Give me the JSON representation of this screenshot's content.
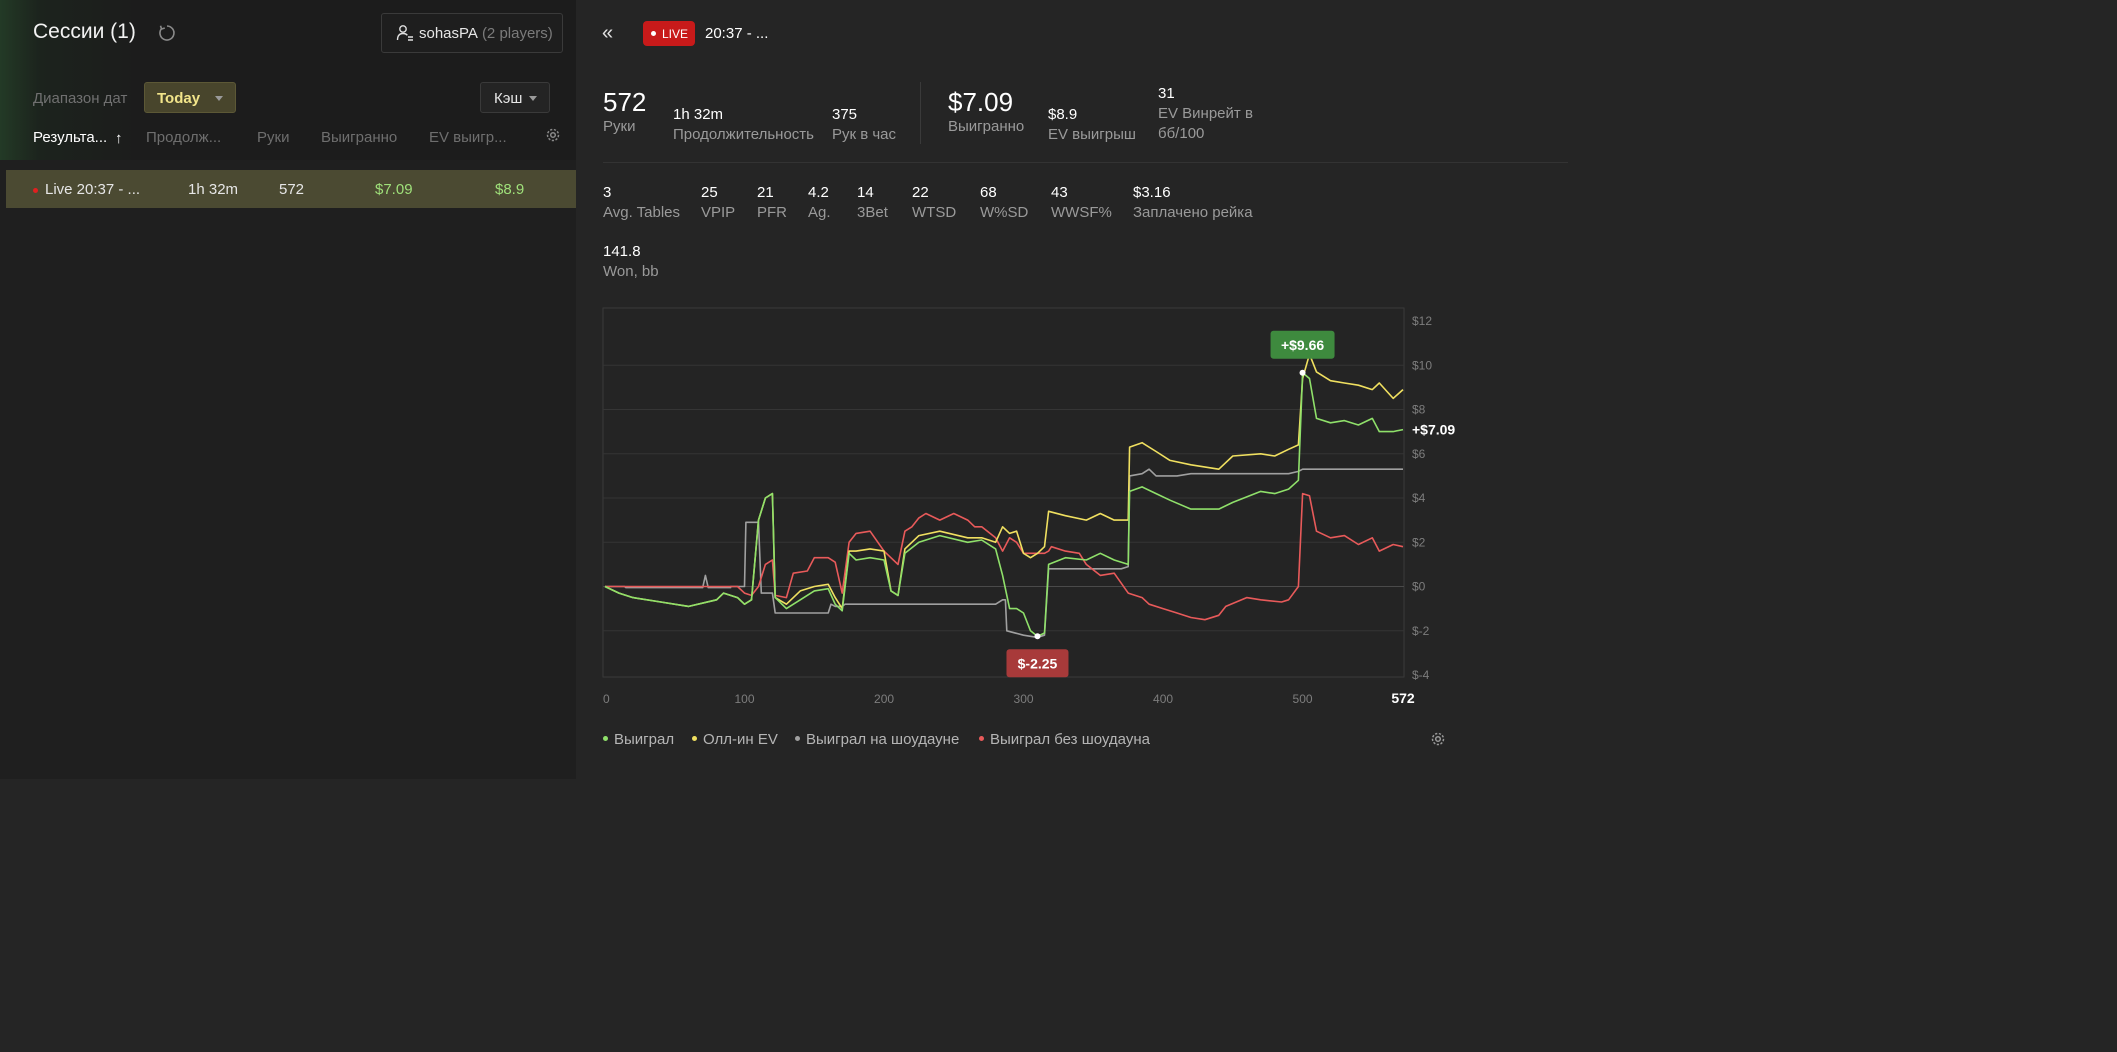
{
  "sidebar": {
    "title": "Сессии (1)",
    "player_name": "sohasPA",
    "player_count": "(2 players)",
    "date_range_label": "Диапазон дат",
    "date_filter": "Today",
    "game_type": "Кэш",
    "columns": [
      "Результа...",
      "Продолж...",
      "Руки",
      "Выигранно",
      "EV выигр..."
    ],
    "sort_arrow": "↑",
    "sessions": [
      {
        "name": "Live 20:37 - ...",
        "duration": "1h 32m",
        "hands": "572",
        "won": "$7.09",
        "ev_won": "$8.9"
      }
    ]
  },
  "session": {
    "collapse_glyph": "«",
    "live_label": "LIVE",
    "title": "20:37 - ...",
    "stats_row1": {
      "hands": {
        "value": "572",
        "label": "Руки"
      },
      "duration": {
        "value": "1h 32m",
        "label": "Продолжительность"
      },
      "hands_per_hour": {
        "value": "375",
        "label": "Рук в час"
      },
      "won": {
        "value": "$7.09",
        "label": "Выигранно"
      },
      "ev_won": {
        "value": "$8.9",
        "label": "EV выигрыш"
      },
      "ev_winrate": {
        "value": "31",
        "label_1": "EV Винрейт в",
        "label_2": "бб/100"
      }
    },
    "stats_row2": [
      {
        "value": "3",
        "label": "Avg. Tables"
      },
      {
        "value": "25",
        "label": "VPIP"
      },
      {
        "value": "21",
        "label": "PFR"
      },
      {
        "value": "4.2",
        "label": "Ag."
      },
      {
        "value": "14",
        "label": "3Bet"
      },
      {
        "value": "22",
        "label": "WTSD"
      },
      {
        "value": "68",
        "label": "W%SD"
      },
      {
        "value": "43",
        "label": "WWSF%"
      },
      {
        "value": "$3.16",
        "label": "Заплачено рейка"
      }
    ],
    "won_bb": {
      "value": "141.8",
      "label": "Won, bb"
    }
  },
  "colors": {
    "green": "#8fe06a",
    "yellow": "#f0e060",
    "gray": "#a0a0a0",
    "red": "#e85a5a",
    "max_badge": "#3e8a3e",
    "min_badge": "#a83a3a"
  },
  "chart_data": {
    "type": "line",
    "xlim": [
      0,
      572
    ],
    "ylim": [
      -4,
      12
    ],
    "x_ticks": [
      "0",
      "100",
      "200",
      "300",
      "400",
      "500",
      "572"
    ],
    "y_ticks": [
      "$12",
      "$10",
      "$8",
      "$6",
      "$4",
      "$2",
      "$0",
      "$-2",
      "$-4"
    ],
    "max_label": "+$9.66",
    "min_label": "$-2.25",
    "end_label": "+$7.09",
    "max_point": {
      "x": 500,
      "y": 9.66
    },
    "min_point": {
      "x": 310,
      "y": -2.25
    },
    "series": [
      {
        "name": "Выиграл",
        "color": "#8fe06a",
        "points": [
          [
            0,
            0
          ],
          [
            10,
            -0.3
          ],
          [
            20,
            -0.5
          ],
          [
            40,
            -0.7
          ],
          [
            60,
            -0.9
          ],
          [
            80,
            -0.6
          ],
          [
            85,
            -0.3
          ],
          [
            95,
            -0.5
          ],
          [
            100,
            -0.8
          ],
          [
            105,
            -0.6
          ],
          [
            110,
            3
          ],
          [
            115,
            4
          ],
          [
            120,
            4.2
          ],
          [
            122,
            -0.5
          ],
          [
            130,
            -1
          ],
          [
            140,
            -0.6
          ],
          [
            150,
            -0.2
          ],
          [
            160,
            -0.1
          ],
          [
            165,
            -0.8
          ],
          [
            170,
            -1.1
          ],
          [
            175,
            1.5
          ],
          [
            180,
            1.2
          ],
          [
            190,
            1.3
          ],
          [
            200,
            1.2
          ],
          [
            205,
            -0.2
          ],
          [
            210,
            -0.4
          ],
          [
            215,
            1.5
          ],
          [
            225,
            2
          ],
          [
            240,
            2.3
          ],
          [
            260,
            2
          ],
          [
            270,
            2.1
          ],
          [
            280,
            1.7
          ],
          [
            285,
            0.5
          ],
          [
            290,
            -1
          ],
          [
            295,
            -1
          ],
          [
            300,
            -1.2
          ],
          [
            305,
            -2
          ],
          [
            310,
            -2.25
          ],
          [
            315,
            -2.1
          ],
          [
            318,
            1
          ],
          [
            330,
            1.3
          ],
          [
            345,
            1.2
          ],
          [
            355,
            1.5
          ],
          [
            365,
            1.2
          ],
          [
            375,
            1
          ],
          [
            376,
            4.3
          ],
          [
            385,
            4.5
          ],
          [
            395,
            4.2
          ],
          [
            405,
            3.9
          ],
          [
            420,
            3.5
          ],
          [
            440,
            3.5
          ],
          [
            450,
            3.8
          ],
          [
            470,
            4.3
          ],
          [
            480,
            4.2
          ],
          [
            490,
            4.4
          ],
          [
            497,
            4.8
          ],
          [
            500,
            9.66
          ],
          [
            505,
            9.4
          ],
          [
            510,
            7.6
          ],
          [
            520,
            7.4
          ],
          [
            530,
            7.5
          ],
          [
            540,
            7.3
          ],
          [
            550,
            7.6
          ],
          [
            555,
            7
          ],
          [
            565,
            7
          ],
          [
            572,
            7.09
          ]
        ]
      },
      {
        "name": "Олл-ин EV",
        "color": "#f0e060",
        "points": [
          [
            0,
            0
          ],
          [
            10,
            -0.3
          ],
          [
            20,
            -0.5
          ],
          [
            40,
            -0.7
          ],
          [
            60,
            -0.9
          ],
          [
            80,
            -0.6
          ],
          [
            85,
            -0.3
          ],
          [
            95,
            -0.5
          ],
          [
            100,
            -0.8
          ],
          [
            105,
            -0.6
          ],
          [
            110,
            3
          ],
          [
            115,
            4
          ],
          [
            120,
            4.2
          ],
          [
            122,
            -0.5
          ],
          [
            130,
            -0.8
          ],
          [
            140,
            -0.2
          ],
          [
            150,
            0
          ],
          [
            160,
            0.1
          ],
          [
            165,
            -0.5
          ],
          [
            170,
            -1
          ],
          [
            175,
            1.6
          ],
          [
            180,
            1.6
          ],
          [
            190,
            1.7
          ],
          [
            200,
            1.6
          ],
          [
            205,
            -0.2
          ],
          [
            210,
            -0.4
          ],
          [
            215,
            1.7
          ],
          [
            225,
            2.3
          ],
          [
            240,
            2.5
          ],
          [
            260,
            2.2
          ],
          [
            270,
            2.2
          ],
          [
            280,
            2
          ],
          [
            285,
            2.7
          ],
          [
            290,
            2.4
          ],
          [
            295,
            2.5
          ],
          [
            300,
            1.5
          ],
          [
            305,
            1.3
          ],
          [
            310,
            1.5
          ],
          [
            315,
            1.8
          ],
          [
            318,
            3.4
          ],
          [
            330,
            3.2
          ],
          [
            345,
            3
          ],
          [
            355,
            3.3
          ],
          [
            365,
            3
          ],
          [
            375,
            3
          ],
          [
            376,
            6.3
          ],
          [
            385,
            6.5
          ],
          [
            395,
            6.1
          ],
          [
            405,
            5.7
          ],
          [
            420,
            5.5
          ],
          [
            440,
            5.3
          ],
          [
            450,
            5.9
          ],
          [
            470,
            6
          ],
          [
            480,
            5.9
          ],
          [
            490,
            6.2
          ],
          [
            497,
            6.4
          ],
          [
            500,
            9.4
          ],
          [
            505,
            10.5
          ],
          [
            510,
            9.7
          ],
          [
            520,
            9.3
          ],
          [
            530,
            9.2
          ],
          [
            540,
            9.1
          ],
          [
            550,
            8.9
          ],
          [
            555,
            9.2
          ],
          [
            565,
            8.5
          ],
          [
            572,
            8.9
          ]
        ]
      },
      {
        "name": "Выиграл на шоудауне",
        "color": "#a0a0a0",
        "points": [
          [
            0,
            0
          ],
          [
            14,
            0
          ],
          [
            15,
            -0.05
          ],
          [
            70,
            -0.05
          ],
          [
            72,
            0.5
          ],
          [
            74,
            -0.05
          ],
          [
            90,
            -0.05
          ],
          [
            90,
            0
          ],
          [
            100,
            0
          ],
          [
            101,
            2.9
          ],
          [
            110,
            2.9
          ],
          [
            112,
            -0.3
          ],
          [
            120,
            -0.3
          ],
          [
            122,
            -1.2
          ],
          [
            160,
            -1.2
          ],
          [
            162,
            -0.8
          ],
          [
            165,
            -0.9
          ],
          [
            170,
            -0.9
          ],
          [
            172,
            -0.8
          ],
          [
            230,
            -0.8
          ],
          [
            250,
            -0.8
          ],
          [
            280,
            -0.8
          ],
          [
            285,
            -0.6
          ],
          [
            287,
            -0.6
          ],
          [
            288,
            -2
          ],
          [
            300,
            -2.2
          ],
          [
            310,
            -2.3
          ],
          [
            315,
            -2.2
          ],
          [
            318,
            0.8
          ],
          [
            370,
            0.8
          ],
          [
            375,
            0.9
          ],
          [
            376,
            5
          ],
          [
            385,
            5.1
          ],
          [
            390,
            5.3
          ],
          [
            395,
            5
          ],
          [
            410,
            5
          ],
          [
            420,
            5.1
          ],
          [
            490,
            5.1
          ],
          [
            497,
            5.2
          ],
          [
            500,
            5.3
          ],
          [
            572,
            5.3
          ]
        ]
      },
      {
        "name": "Выиграл без шоудауна",
        "color": "#e85a5a",
        "points": [
          [
            0,
            0
          ],
          [
            50,
            0
          ],
          [
            95,
            0
          ],
          [
            100,
            -0.3
          ],
          [
            105,
            -0.4
          ],
          [
            110,
            0
          ],
          [
            115,
            1
          ],
          [
            120,
            1.2
          ],
          [
            122,
            -0.4
          ],
          [
            130,
            -0.5
          ],
          [
            135,
            0.6
          ],
          [
            145,
            0.7
          ],
          [
            150,
            1.3
          ],
          [
            160,
            1.3
          ],
          [
            165,
            1.1
          ],
          [
            170,
            -0.3
          ],
          [
            175,
            2
          ],
          [
            180,
            2.4
          ],
          [
            190,
            2.5
          ],
          [
            200,
            1.6
          ],
          [
            210,
            1
          ],
          [
            215,
            2.5
          ],
          [
            220,
            2.7
          ],
          [
            225,
            3.1
          ],
          [
            230,
            3.3
          ],
          [
            240,
            3
          ],
          [
            250,
            3.3
          ],
          [
            260,
            3
          ],
          [
            265,
            2.7
          ],
          [
            270,
            2.7
          ],
          [
            280,
            2.2
          ],
          [
            285,
            1.6
          ],
          [
            290,
            2.2
          ],
          [
            295,
            2
          ],
          [
            300,
            1.5
          ],
          [
            305,
            1.5
          ],
          [
            310,
            1.5
          ],
          [
            315,
            1.5
          ],
          [
            318,
            1.6
          ],
          [
            320,
            1.8
          ],
          [
            330,
            1.6
          ],
          [
            340,
            1.5
          ],
          [
            345,
            1
          ],
          [
            355,
            0.5
          ],
          [
            365,
            0.6
          ],
          [
            375,
            -0.3
          ],
          [
            385,
            -0.5
          ],
          [
            390,
            -0.8
          ],
          [
            400,
            -1
          ],
          [
            410,
            -1.2
          ],
          [
            420,
            -1.4
          ],
          [
            430,
            -1.5
          ],
          [
            440,
            -1.3
          ],
          [
            445,
            -0.9
          ],
          [
            460,
            -0.5
          ],
          [
            470,
            -0.6
          ],
          [
            485,
            -0.7
          ],
          [
            490,
            -0.6
          ],
          [
            497,
            0
          ],
          [
            500,
            4.2
          ],
          [
            505,
            4.1
          ],
          [
            510,
            2.5
          ],
          [
            520,
            2.2
          ],
          [
            530,
            2.3
          ],
          [
            540,
            1.9
          ],
          [
            550,
            2.2
          ],
          [
            555,
            1.6
          ],
          [
            565,
            1.9
          ],
          [
            572,
            1.8
          ]
        ]
      }
    ]
  },
  "legend": [
    "Выиграл",
    "Олл-ин EV",
    "Выиграл на шоудауне",
    "Выиграл без шоудауна"
  ]
}
